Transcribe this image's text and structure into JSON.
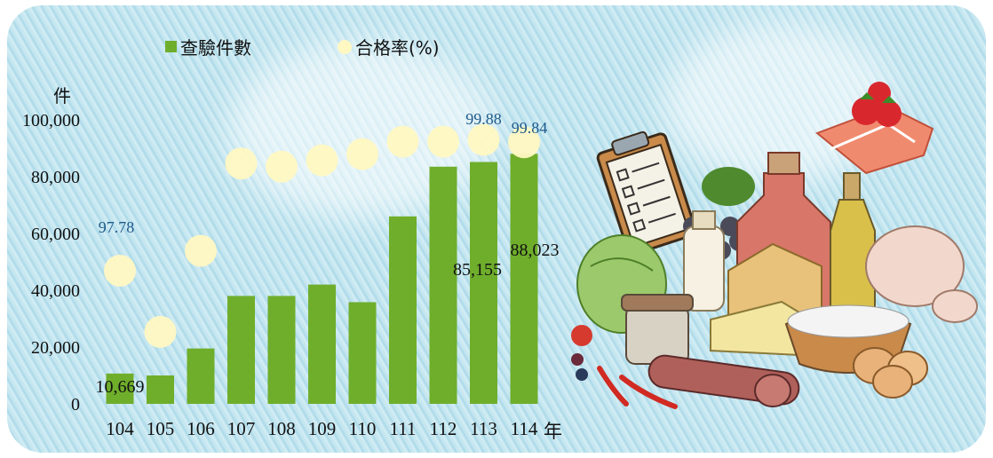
{
  "legend": {
    "inspections": "查驗件數",
    "pass_rate": "合格率(%)"
  },
  "units": {
    "y": "件",
    "x": "年"
  },
  "colors": {
    "bar": "#6fae2b",
    "bar_dark": "#5a9a1e",
    "dot": "#fff8c2",
    "rate_label": "#1f5a8a",
    "text": "#111111"
  },
  "chart_data": {
    "type": "bar",
    "categories": [
      "104",
      "105",
      "106",
      "107",
      "108",
      "109",
      "110",
      "111",
      "112",
      "113",
      "114"
    ],
    "series": [
      {
        "name": "查驗件數",
        "values": [
          10669,
          10000,
          19500,
          38000,
          38000,
          42000,
          35800,
          66000,
          83500,
          85155,
          88023
        ]
      },
      {
        "name": "合格率(%)",
        "values": [
          97.78,
          96.8,
          98.1,
          99.5,
          99.45,
          99.55,
          99.65,
          99.85,
          99.85,
          99.88,
          99.84
        ]
      }
    ],
    "bar_labels": [
      "10,669",
      "",
      "",
      "",
      "",
      "",
      "",
      "",
      "",
      "85,155",
      "88,023"
    ],
    "rate_labels": [
      "97.78",
      "",
      "",
      "",
      "",
      "",
      "",
      "",
      "",
      "99.88",
      "99.84"
    ],
    "yticks": [
      "0",
      "20,000",
      "40,000",
      "60,000",
      "80,000",
      "100,000"
    ],
    "ylim": [
      0,
      100000
    ],
    "xlabel": "年",
    "ylabel": "件",
    "legend_position": "top"
  }
}
